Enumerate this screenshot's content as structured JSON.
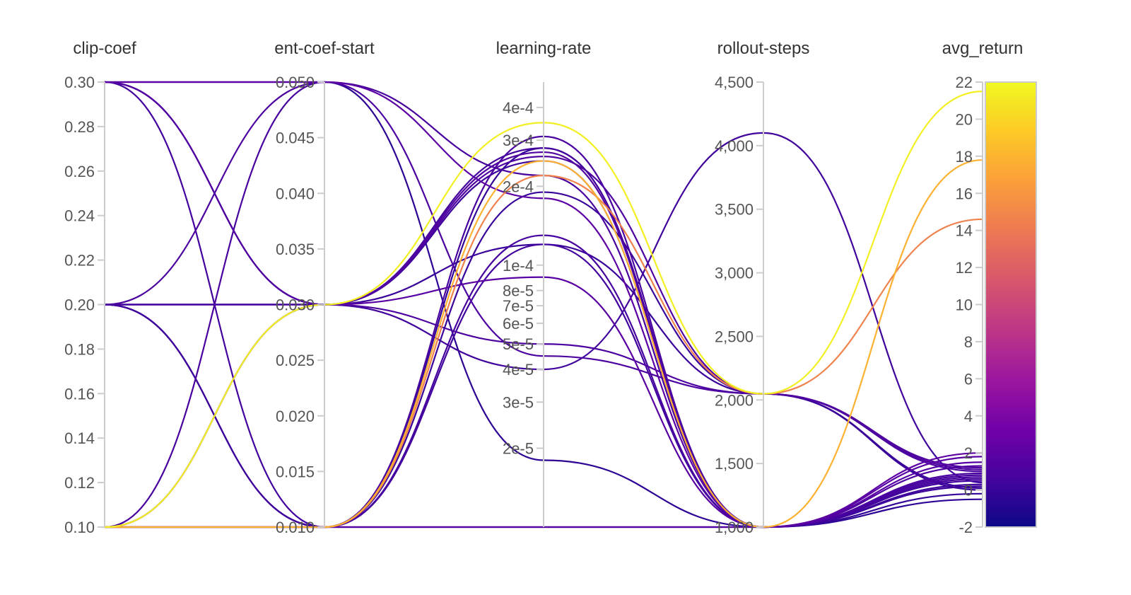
{
  "chart_data": {
    "type": "parallel-coordinates",
    "title": "",
    "axes": [
      {
        "key": "clip_coef",
        "label": "clip-coef",
        "scale": "linear",
        "range": [
          0.1,
          0.3
        ],
        "ticks": [
          0.1,
          0.12,
          0.14,
          0.16,
          0.18,
          0.2,
          0.22,
          0.24,
          0.26,
          0.28,
          0.3
        ],
        "tick_labels": [
          "0.10",
          "0.12",
          "0.14",
          "0.16",
          "0.18",
          "0.20",
          "0.22",
          "0.24",
          "0.26",
          "0.28",
          "0.30"
        ]
      },
      {
        "key": "ent_coef_start",
        "label": "ent-coef-start",
        "scale": "linear",
        "range": [
          0.01,
          0.05
        ],
        "ticks": [
          0.01,
          0.015,
          0.02,
          0.025,
          0.03,
          0.035,
          0.04,
          0.045,
          0.05
        ],
        "tick_labels": [
          "0.010",
          "0.015",
          "0.020",
          "0.025",
          "0.030",
          "0.035",
          "0.040",
          "0.045",
          "0.050"
        ]
      },
      {
        "key": "learning_rate",
        "label": "learning-rate",
        "scale": "log",
        "range": [
          1e-05,
          0.0005
        ],
        "ticks": [
          2e-05,
          3e-05,
          4e-05,
          5e-05,
          6e-05,
          7e-05,
          8e-05,
          0.0001,
          0.0002,
          0.0003,
          0.0004
        ],
        "tick_labels": [
          "2e-5",
          "3e-5",
          "4e-5",
          "5e-5",
          "6e-5",
          "7e-5",
          "8e-5",
          "1e-4",
          "2e-4",
          "3e-4",
          "4e-4"
        ]
      },
      {
        "key": "rollout_steps",
        "label": "rollout-steps",
        "scale": "linear",
        "range": [
          1000,
          4500
        ],
        "ticks": [
          1000,
          1500,
          2000,
          2500,
          3000,
          3500,
          4000,
          4500
        ],
        "tick_labels": [
          "1,000",
          "1,500",
          "2,000",
          "2,500",
          "3,000",
          "3,500",
          "4,000",
          "4,500"
        ]
      },
      {
        "key": "avg_return",
        "label": "avg_return",
        "scale": "linear",
        "range": [
          -2,
          22
        ],
        "ticks": [
          -2,
          0,
          2,
          4,
          6,
          8,
          10,
          12,
          14,
          16,
          18,
          20,
          22
        ],
        "tick_labels": [
          "-2",
          "0",
          "2",
          "4",
          "6",
          "8",
          "10",
          "12",
          "14",
          "16",
          "18",
          "20",
          "22"
        ]
      }
    ],
    "color_axis": "avg_return",
    "colorscale": [
      "#0d0887",
      "#46039f",
      "#7201a8",
      "#9c179e",
      "#bd3786",
      "#d8576b",
      "#ed7953",
      "#fb9f3a",
      "#fdca26",
      "#f0f921"
    ],
    "runs": [
      {
        "clip_coef": 0.1,
        "ent_coef_start": 0.03,
        "learning_rate": 0.00035,
        "rollout_steps": 2048,
        "avg_return": 21.5
      },
      {
        "clip_coef": 0.1,
        "ent_coef_start": 0.01,
        "learning_rate": 0.00025,
        "rollout_steps": 1000,
        "avg_return": 17.8
      },
      {
        "clip_coef": 0.1,
        "ent_coef_start": 0.01,
        "learning_rate": 0.00022,
        "rollout_steps": 2048,
        "avg_return": 14.6
      },
      {
        "clip_coef": 0.1,
        "ent_coef_start": 0.03,
        "learning_rate": 0.00026,
        "rollout_steps": 2048,
        "avg_return": 1.2
      },
      {
        "clip_coef": 0.1,
        "ent_coef_start": 0.05,
        "learning_rate": 0.00022,
        "rollout_steps": 1000,
        "avg_return": 0.8
      },
      {
        "clip_coef": 0.1,
        "ent_coef_start": 0.01,
        "learning_rate": 1e-05,
        "rollout_steps": 1000,
        "avg_return": 1.5
      },
      {
        "clip_coef": 0.3,
        "ent_coef_start": 0.05,
        "learning_rate": 0.00018,
        "rollout_steps": 1000,
        "avg_return": 2.0
      },
      {
        "clip_coef": 0.3,
        "ent_coef_start": 0.03,
        "learning_rate": 0.00025,
        "rollout_steps": 1000,
        "avg_return": 0.2
      },
      {
        "clip_coef": 0.3,
        "ent_coef_start": 0.01,
        "learning_rate": 0.00012,
        "rollout_steps": 1000,
        "avg_return": 0.5
      },
      {
        "clip_coef": 0.3,
        "ent_coef_start": 0.05,
        "learning_rate": 1.8e-05,
        "rollout_steps": 1000,
        "avg_return": -0.5
      },
      {
        "clip_coef": 0.2,
        "ent_coef_start": 0.05,
        "learning_rate": 4.5e-05,
        "rollout_steps": 2048,
        "avg_return": 1.0
      },
      {
        "clip_coef": 0.2,
        "ent_coef_start": 0.03,
        "learning_rate": 0.00028,
        "rollout_steps": 1000,
        "avg_return": 0.6
      },
      {
        "clip_coef": 0.2,
        "ent_coef_start": 0.01,
        "learning_rate": 1e-05,
        "rollout_steps": 1000,
        "avg_return": 0.3
      },
      {
        "clip_coef": 0.2,
        "ent_coef_start": 0.03,
        "learning_rate": 4e-05,
        "rollout_steps": 4100,
        "avg_return": 0.4
      },
      {
        "clip_coef": 0.1,
        "ent_coef_start": 0.03,
        "learning_rate": 9e-05,
        "rollout_steps": 1000,
        "avg_return": 1.8
      },
      {
        "clip_coef": 0.2,
        "ent_coef_start": 0.01,
        "learning_rate": 0.00028,
        "rollout_steps": 1000,
        "avg_return": -0.2
      },
      {
        "clip_coef": 0.1,
        "ent_coef_start": 0.01,
        "learning_rate": 0.00031,
        "rollout_steps": 1000,
        "avg_return": 0.9
      },
      {
        "clip_coef": 0.3,
        "ent_coef_start": 0.03,
        "learning_rate": 0.00027,
        "rollout_steps": 1000,
        "avg_return": 1.3
      },
      {
        "clip_coef": 0.2,
        "ent_coef_start": 0.03,
        "learning_rate": 0.00012,
        "rollout_steps": 2048,
        "avg_return": 0.1
      },
      {
        "clip_coef": 0.1,
        "ent_coef_start": 0.01,
        "learning_rate": 0.00013,
        "rollout_steps": 1000,
        "avg_return": 0.7
      },
      {
        "clip_coef": 0.3,
        "ent_coef_start": 0.03,
        "learning_rate": 5e-05,
        "rollout_steps": 2048,
        "avg_return": 1.1
      },
      {
        "clip_coef": 0.2,
        "ent_coef_start": 0.01,
        "learning_rate": 0.00019,
        "rollout_steps": 2048,
        "avg_return": 0.0
      }
    ]
  }
}
